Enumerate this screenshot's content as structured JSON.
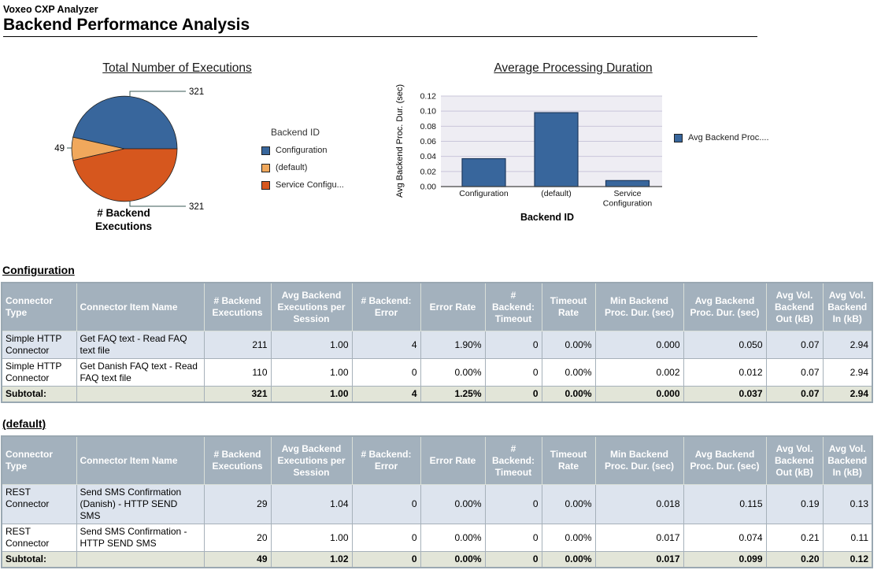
{
  "header": {
    "app": "Voxeo CXP Analyzer",
    "title": "Backend Performance Analysis"
  },
  "chart_data": [
    {
      "type": "pie",
      "title": "Total Number of Executions",
      "legend_title": "Backend ID",
      "series_label": "# Backend Executions",
      "series_label_lines": [
        "# Backend",
        "Executions"
      ],
      "slices": [
        {
          "label": "Configuration",
          "value": 321,
          "color": "#38669C"
        },
        {
          "label": "(default)",
          "value": 49,
          "color": "#F0A85C"
        },
        {
          "label": "Service Configuration",
          "value": 321,
          "color": "#D6571E"
        }
      ],
      "legend_labels": [
        "Configuration",
        "(default)",
        "Service Configu..."
      ],
      "callout_values": [
        "321",
        "49",
        "321"
      ]
    },
    {
      "type": "bar",
      "title": "Average Processing Duration",
      "xlabel": "Backend ID",
      "ylabel": "Avg Backend Proc. Dur. (sec)",
      "categories": [
        "Configuration",
        "(default)",
        "Service Configuration"
      ],
      "values": [
        0.037,
        0.098,
        0.008
      ],
      "ylim": [
        0,
        0.12
      ],
      "ytick_step": 0.02,
      "grid": true,
      "legend": "Avg Backend Proc....",
      "legend_position": "right",
      "bar_color": "#38669C"
    }
  ],
  "tables": {
    "columns": [
      "Connector Type",
      "Connector Item Name",
      "# Backend Executions",
      "Avg Backend Executions per Session",
      "# Backend: Error",
      "Error Rate",
      "# Backend: Timeout",
      "Timeout Rate",
      "Min Backend Proc. Dur. (sec)",
      "Avg Backend Proc. Dur. (sec)",
      "Avg Vol. Backend Out (kB)",
      "Avg Vol. Backend In (kB)"
    ],
    "sections": [
      {
        "heading": "Configuration",
        "rows": [
          [
            "Simple HTTP Connector",
            "Get FAQ text - Read FAQ text file",
            "211",
            "1.00",
            "4",
            "1.90%",
            "0",
            "0.00%",
            "0.000",
            "0.050",
            "0.07",
            "2.94"
          ],
          [
            "Simple HTTP Connector",
            "Get Danish FAQ text - Read FAQ text file",
            "110",
            "1.00",
            "0",
            "0.00%",
            "0",
            "0.00%",
            "0.002",
            "0.012",
            "0.07",
            "2.94"
          ]
        ],
        "subtotal": [
          "Subtotal:",
          "",
          "321",
          "1.00",
          "4",
          "1.25%",
          "0",
          "0.00%",
          "0.000",
          "0.037",
          "0.07",
          "2.94"
        ]
      },
      {
        "heading": "(default)",
        "rows": [
          [
            "REST Connector",
            "Send SMS Confirmation (Danish) - HTTP SEND SMS",
            "29",
            "1.04",
            "0",
            "0.00%",
            "0",
            "0.00%",
            "0.018",
            "0.115",
            "0.19",
            "0.13"
          ],
          [
            "REST Connector",
            "Send SMS Confirmation - HTTP SEND SMS",
            "20",
            "1.00",
            "0",
            "0.00%",
            "0",
            "0.00%",
            "0.017",
            "0.074",
            "0.21",
            "0.11"
          ]
        ],
        "subtotal": [
          "Subtotal:",
          "",
          "49",
          "1.02",
          "0",
          "0.00%",
          "0",
          "0.00%",
          "0.017",
          "0.099",
          "0.20",
          "0.12"
        ]
      }
    ]
  },
  "colors": {
    "table_header_bg": "#A3B1BD",
    "row_alt": "#DDE4EE",
    "subtotal_bg": "#E2E5D8",
    "table_border": "#9AA8B2",
    "cell_border": "#A6B1BA",
    "header_cell_border": "#D9DFD8",
    "plot_bg": "#EEEDF3",
    "grid": "#C9C6DA",
    "axis_line": "#444444",
    "callout_line": "#3A5A55",
    "bar_stroke": "#1E3A5F"
  }
}
